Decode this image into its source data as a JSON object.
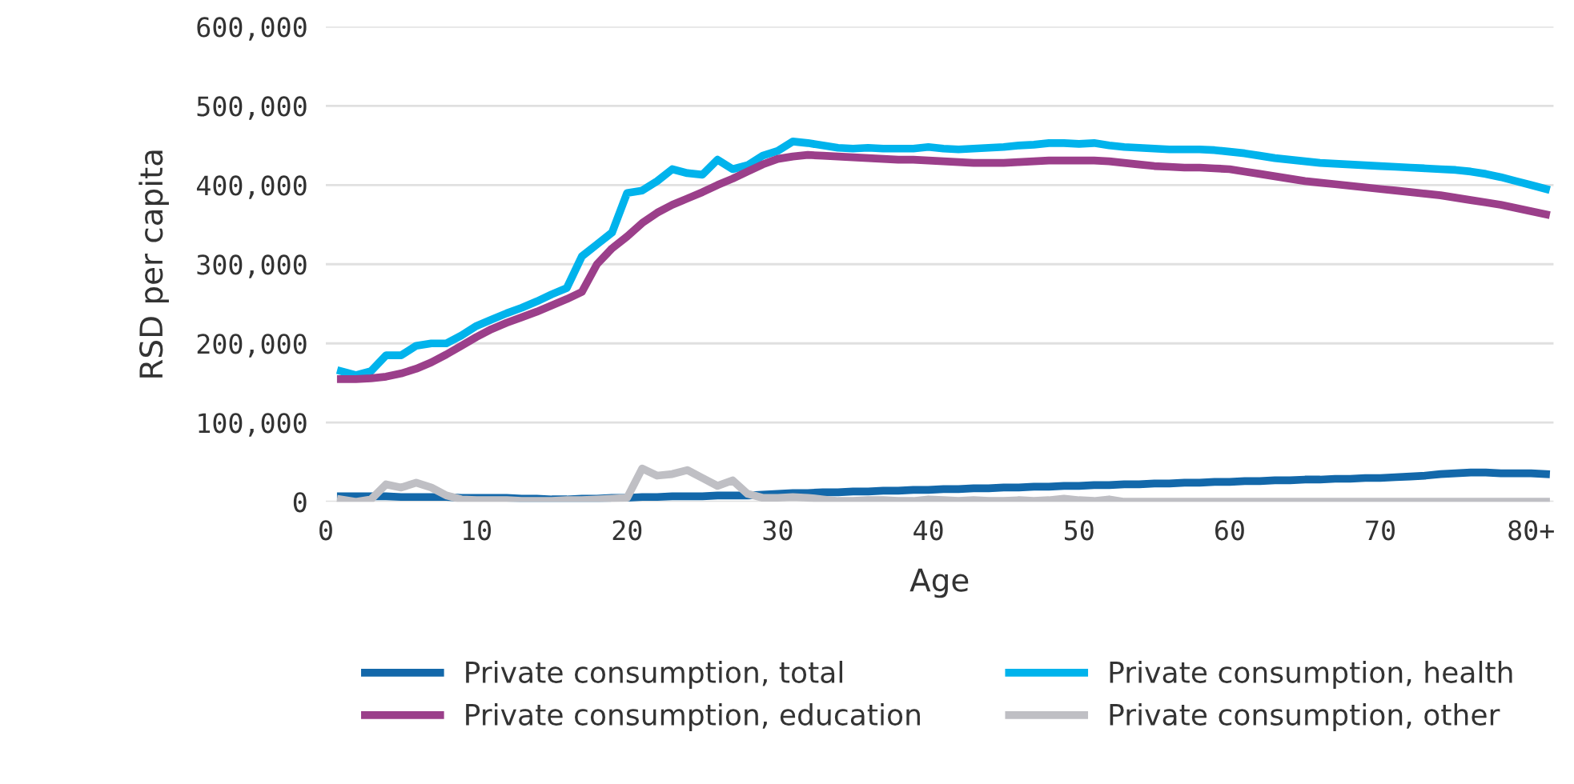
{
  "chart_data": {
    "type": "line",
    "xlabel": "Age",
    "ylabel": "RSD per capita",
    "x": [
      1,
      2,
      3,
      4,
      5,
      6,
      7,
      8,
      9,
      10,
      11,
      12,
      13,
      14,
      15,
      16,
      17,
      18,
      19,
      20,
      21,
      22,
      23,
      24,
      25,
      26,
      27,
      28,
      29,
      30,
      31,
      32,
      33,
      34,
      35,
      36,
      37,
      38,
      39,
      40,
      41,
      42,
      43,
      44,
      45,
      46,
      47,
      48,
      49,
      50,
      51,
      52,
      53,
      54,
      55,
      56,
      57,
      58,
      59,
      60,
      61,
      62,
      63,
      64,
      65,
      66,
      67,
      68,
      69,
      70,
      71,
      72,
      73,
      74,
      75,
      76,
      77,
      78,
      79,
      80,
      81
    ],
    "series": [
      {
        "name": "Private consumption, total",
        "color": "#1368aa",
        "values": [
          7000,
          7000,
          7000,
          7000,
          6000,
          6000,
          6000,
          6000,
          5000,
          5000,
          5000,
          5000,
          4000,
          4000,
          3000,
          3000,
          4000,
          4000,
          5000,
          5000,
          6000,
          6000,
          7000,
          7000,
          7000,
          8000,
          8000,
          8000,
          9000,
          10000,
          11000,
          11000,
          12000,
          12000,
          13000,
          13000,
          14000,
          14000,
          15000,
          15000,
          16000,
          16000,
          17000,
          17000,
          18000,
          18000,
          19000,
          19000,
          20000,
          20000,
          21000,
          21000,
          22000,
          22000,
          23000,
          23000,
          24000,
          24000,
          25000,
          25000,
          26000,
          26000,
          27000,
          27000,
          28000,
          28000,
          29000,
          29000,
          30000,
          30000,
          31000,
          32000,
          33000,
          35000,
          36000,
          37000,
          37000,
          36000,
          36000,
          36000,
          35000
        ]
      },
      {
        "name": "Private consumption, health",
        "color": "#00b3ec",
        "values": [
          165000,
          160000,
          165000,
          185000,
          185000,
          197000,
          200000,
          200000,
          210000,
          222000,
          230000,
          238000,
          245000,
          253000,
          262000,
          270000,
          310000,
          325000,
          340000,
          390000,
          393000,
          405000,
          420000,
          415000,
          413000,
          432000,
          420000,
          425000,
          437000,
          443000,
          455000,
          453000,
          450000,
          447000,
          446000,
          447000,
          446000,
          446000,
          446000,
          448000,
          446000,
          445000,
          446000,
          447000,
          448000,
          450000,
          451000,
          453000,
          453000,
          452000,
          453000,
          450000,
          448000,
          447000,
          446000,
          445000,
          445000,
          445000,
          444000,
          442000,
          440000,
          437000,
          434000,
          432000,
          430000,
          428000,
          427000,
          426000,
          425000,
          424000,
          423000,
          422000,
          421000,
          420000,
          419000,
          417000,
          414000,
          410000,
          405000,
          400000,
          395000
        ]
      },
      {
        "name": "Private consumption, education",
        "color": "#9b3f8a",
        "values": [
          155000,
          155000,
          156000,
          158000,
          162000,
          168000,
          176000,
          186000,
          197000,
          208000,
          218000,
          226000,
          233000,
          240000,
          248000,
          256000,
          265000,
          300000,
          320000,
          335000,
          352000,
          365000,
          375000,
          383000,
          391000,
          400000,
          408000,
          417000,
          426000,
          433000,
          436000,
          438000,
          437000,
          436000,
          435000,
          434000,
          433000,
          432000,
          432000,
          431000,
          430000,
          429000,
          428000,
          428000,
          428000,
          429000,
          430000,
          431000,
          431000,
          431000,
          431000,
          430000,
          428000,
          426000,
          424000,
          423000,
          422000,
          422000,
          421000,
          420000,
          417000,
          414000,
          411000,
          408000,
          405000,
          403000,
          401000,
          399000,
          397000,
          395000,
          393000,
          391000,
          389000,
          387000,
          384000,
          381000,
          378000,
          375000,
          371000,
          367000,
          363000
        ]
      },
      {
        "name": "Private consumption, other",
        "color": "#bfbfc4",
        "values": [
          3000,
          0,
          3000,
          22000,
          18000,
          24000,
          18000,
          8000,
          3000,
          2000,
          2000,
          2000,
          1000,
          1000,
          1000,
          2000,
          2000,
          3000,
          4000,
          5000,
          42000,
          33000,
          35000,
          40000,
          30000,
          20000,
          27000,
          10000,
          5000,
          5000,
          6000,
          5000,
          3000,
          1000,
          1000,
          2000,
          2000,
          1000,
          1000,
          3000,
          2000,
          1000,
          2000,
          1000,
          1000,
          2000,
          1000,
          2000,
          4000,
          2000,
          1000,
          3000,
          0,
          0,
          0,
          0,
          0,
          0,
          0,
          0,
          0,
          0,
          0,
          0,
          0,
          0,
          0,
          0,
          0,
          0,
          0,
          0,
          0,
          0,
          0,
          0,
          0,
          0,
          0,
          0,
          0
        ]
      }
    ],
    "xlim": [
      0,
      81.5
    ],
    "xticks": [
      0,
      10,
      20,
      30,
      40,
      50,
      60,
      70,
      {
        "value": 80,
        "label": "80+"
      }
    ],
    "ylim": [
      0,
      600000
    ],
    "yticks": [
      {
        "value": 0,
        "label": "0"
      },
      {
        "value": 100000,
        "label": "100,000"
      },
      {
        "value": 200000,
        "label": "200,000"
      },
      {
        "value": 300000,
        "label": "300,000"
      },
      {
        "value": 400000,
        "label": "400,000"
      },
      {
        "value": 500000,
        "label": "500,000"
      },
      {
        "value": 600000,
        "label": "600,000"
      }
    ],
    "grid": "y",
    "legend": "bottom",
    "marker": "none",
    "line_style": "solid"
  }
}
